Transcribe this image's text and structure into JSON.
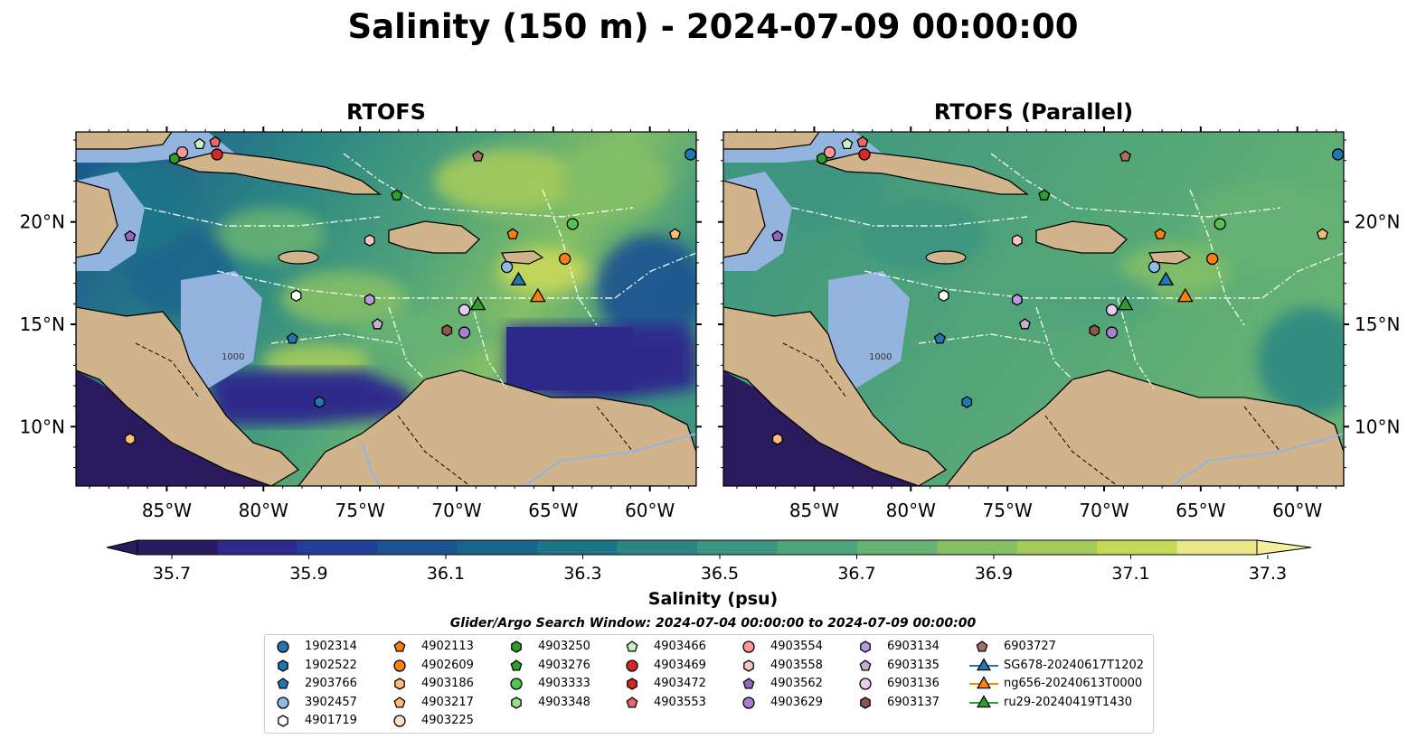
{
  "title": "Salinity (150 m) - 2024-07-09 00:00:00",
  "panels": [
    {
      "title": "RTOFS"
    },
    {
      "title": "RTOFS (Parallel)"
    }
  ],
  "map": {
    "lon_ticks": [
      "85°W",
      "80°W",
      "75°W",
      "70°W",
      "65°W",
      "60°W"
    ],
    "lat_ticks": [
      "20°N",
      "15°N",
      "10°N"
    ],
    "contour_label": "1000",
    "colors": {
      "land": "#d2b48c",
      "shelf": "#94b4e0",
      "boundary": "#ffffff"
    }
  },
  "colorbar": {
    "label": "Salinity (psu)",
    "ticks": [
      "35.7",
      "35.9",
      "36.1",
      "36.3",
      "36.5",
      "36.7",
      "36.9",
      "37.1",
      "37.3"
    ],
    "colors": [
      "#2a1a5e",
      "#2e2a8c",
      "#213f99",
      "#1c5391",
      "#1a658c",
      "#1d7688",
      "#2b8683",
      "#3c9580",
      "#4fa37a",
      "#66b273",
      "#84bf66",
      "#a5cb5c",
      "#c8d95a",
      "#ebe78b"
    ]
  },
  "search_window": "Glider/Argo Search Window: 2024-07-04 00:00:00 to 2024-07-09 00:00:00",
  "legend": [
    {
      "label": "1902314",
      "marker": "circle",
      "color": "#1f77b4"
    },
    {
      "label": "1902522",
      "marker": "hexagon",
      "color": "#1f77b4"
    },
    {
      "label": "2903766",
      "marker": "pentagon",
      "color": "#1f77b4"
    },
    {
      "label": "3902457",
      "marker": "circle",
      "color": "#8fbce6"
    },
    {
      "label": "4901719",
      "marker": "hexagon",
      "color": "#ffffff"
    },
    {
      "label": "4902113",
      "marker": "pentagon",
      "color": "#ff7f0e"
    },
    {
      "label": "4902609",
      "marker": "circle",
      "color": "#ff7f0e"
    },
    {
      "label": "4903186",
      "marker": "hexagon",
      "color": "#ffbb78"
    },
    {
      "label": "4903217",
      "marker": "pentagon",
      "color": "#ffbb78"
    },
    {
      "label": "4903225",
      "marker": "circle",
      "color": "#ffe1c4"
    },
    {
      "label": "4903250",
      "marker": "hexagon",
      "color": "#2ca02c"
    },
    {
      "label": "4903276",
      "marker": "pentagon",
      "color": "#2ca02c"
    },
    {
      "label": "4903333",
      "marker": "circle",
      "color": "#57c157"
    },
    {
      "label": "4903348",
      "marker": "hexagon",
      "color": "#98df8a"
    },
    {
      "label": "4903466",
      "marker": "pentagon",
      "color": "#c8f0c0"
    },
    {
      "label": "4903469",
      "marker": "circle",
      "color": "#d62728"
    },
    {
      "label": "4903472",
      "marker": "hexagon",
      "color": "#d62728"
    },
    {
      "label": "4903553",
      "marker": "pentagon",
      "color": "#e8676b"
    },
    {
      "label": "4903554",
      "marker": "circle",
      "color": "#ff9896"
    },
    {
      "label": "4903558",
      "marker": "hexagon",
      "color": "#ffc4c2"
    },
    {
      "label": "4903562",
      "marker": "pentagon",
      "color": "#9467bd"
    },
    {
      "label": "4903629",
      "marker": "circle",
      "color": "#a67fd0"
    },
    {
      "label": "6903134",
      "marker": "hexagon",
      "color": "#b99bdd"
    },
    {
      "label": "6903135",
      "marker": "pentagon",
      "color": "#c5b0d5"
    },
    {
      "label": "6903136",
      "marker": "circle",
      "color": "#e8cdf0"
    },
    {
      "label": "6903137",
      "marker": "hexagon",
      "color": "#8c564b"
    },
    {
      "label": "6903727",
      "marker": "pentagon",
      "color": "#a57164"
    },
    {
      "label": "SG678-20240617T1202",
      "marker": "triangle",
      "color": "#1f77b4",
      "line": true
    },
    {
      "label": "ng656-20240613T0000",
      "marker": "triangle",
      "color": "#ff7f0e",
      "line": true
    },
    {
      "label": "ru29-20240419T1430",
      "marker": "triangle",
      "color": "#2ca02c",
      "line": true
    }
  ],
  "markers_left": [
    {
      "id": "1902314",
      "lon": -57.9,
      "lat": 23.3
    },
    {
      "id": "4903250",
      "lon": -84.6,
      "lat": 23.1
    },
    {
      "id": "4903554",
      "lon": -84.2,
      "lat": 23.4
    },
    {
      "id": "4903466",
      "lon": -83.3,
      "lat": 23.8
    },
    {
      "id": "4903553",
      "lon": -82.5,
      "lat": 23.9
    },
    {
      "id": "4903469",
      "lon": -82.4,
      "lat": 23.3
    },
    {
      "id": "6903727",
      "lon": -68.9,
      "lat": 23.2
    },
    {
      "id": "4903276",
      "lon": -73.1,
      "lat": 21.3
    },
    {
      "id": "4903333",
      "lon": -64.0,
      "lat": 19.9
    },
    {
      "id": "4902113",
      "lon": -67.1,
      "lat": 19.4
    },
    {
      "id": "4903217",
      "lon": -58.7,
      "lat": 19.4
    },
    {
      "id": "4903562",
      "lon": -86.9,
      "lat": 19.3
    },
    {
      "id": "4903558",
      "lon": -74.5,
      "lat": 19.1
    },
    {
      "id": "4902609",
      "lon": -64.4,
      "lat": 18.2
    },
    {
      "id": "3902457",
      "lon": -67.4,
      "lat": 17.8
    },
    {
      "id": "4901719",
      "lon": -78.3,
      "lat": 16.4
    },
    {
      "id": "6903134",
      "lon": -74.5,
      "lat": 16.2
    },
    {
      "id": "6903136",
      "lon": -69.6,
      "lat": 15.7
    },
    {
      "id": "6903135",
      "lon": -74.1,
      "lat": 15.0
    },
    {
      "id": "6903137",
      "lon": -70.5,
      "lat": 14.7
    },
    {
      "id": "4903629",
      "lon": -69.6,
      "lat": 14.6
    },
    {
      "id": "2903766",
      "lon": -78.5,
      "lat": 14.3
    },
    {
      "id": "1902522",
      "lon": -77.1,
      "lat": 11.2
    },
    {
      "id": "4903186",
      "lon": -86.9,
      "lat": 9.4
    },
    {
      "id": "SG678-20240617T1202",
      "lon": -66.8,
      "lat": 17.2
    },
    {
      "id": "ng656-20240613T0000",
      "lon": -65.8,
      "lat": 16.4
    },
    {
      "id": "ru29-20240419T1430",
      "lon": -68.9,
      "lat": 16.0
    }
  ]
}
